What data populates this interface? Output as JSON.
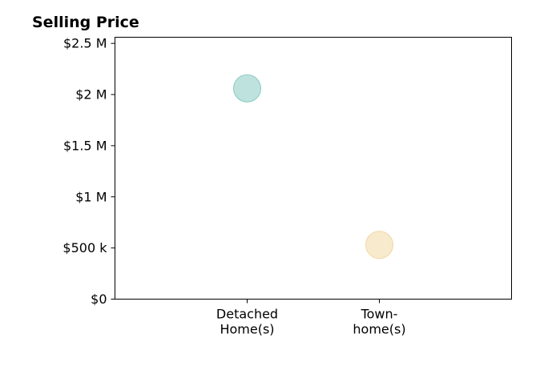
{
  "chart_data": {
    "type": "scatter",
    "title": "Selling Price",
    "xlabel": "",
    "ylabel": "",
    "categories": [
      [
        "Detached",
        "Home(s)"
      ],
      [
        "Town-",
        "home(s)"
      ]
    ],
    "values": [
      2060000,
      530000
    ],
    "point_colors": [
      "#a8d8d3",
      "#f6e3bb"
    ],
    "point_stroke_colors": [
      "#8ccac3",
      "#f0d7a4"
    ],
    "xlim": [
      -1,
      2
    ],
    "ylim": [
      0,
      2560000
    ],
    "yticks": [
      0,
      500000,
      1000000,
      1500000,
      2000000,
      2500000
    ],
    "ytick_labels": [
      "$0",
      "$500 k",
      "$1 M",
      "$1.5 M",
      "$2 M",
      "$2.5 M"
    ],
    "grid": false,
    "legend": "none"
  }
}
